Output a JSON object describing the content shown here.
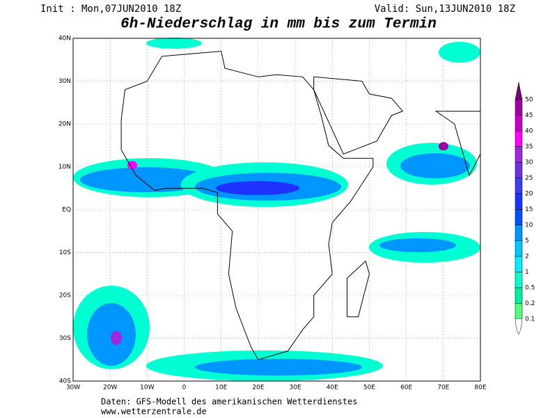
{
  "header": {
    "init": "Init : Mon,07JUN2010 18Z",
    "valid": "Valid: Sun,13JUN2010 18Z",
    "title": "6h-Niederschlag in mm bis zum Termin"
  },
  "map": {
    "lat_labels": [
      "40N",
      "30N",
      "20N",
      "10N",
      "EQ",
      "10S",
      "20S",
      "30S",
      "40S"
    ],
    "lon_labels": [
      "30W",
      "20W",
      "10W",
      "0",
      "10E",
      "20E",
      "30E",
      "40E",
      "50E",
      "60E",
      "70E",
      "80E"
    ]
  },
  "colorbar": [
    {
      "value": 50,
      "color": "#780078"
    },
    {
      "value": 45,
      "color": "#a000a0"
    },
    {
      "value": 40,
      "color": "#c800c8"
    },
    {
      "value": 35,
      "color": "#ff00ff"
    },
    {
      "value": 30,
      "color": "#a028dc"
    },
    {
      "value": 25,
      "color": "#6e32dc"
    },
    {
      "value": 20,
      "color": "#3c3cf0"
    },
    {
      "value": 15,
      "color": "#1e32ff"
    },
    {
      "value": 10,
      "color": "#0050ff"
    },
    {
      "value": 5,
      "color": "#0096ff"
    },
    {
      "value": 2,
      "color": "#00c8ff"
    },
    {
      "value": 1,
      "color": "#00f0ff"
    },
    {
      "value": 0.5,
      "color": "#00ffd2"
    },
    {
      "value": 0.2,
      "color": "#00f0a0"
    },
    {
      "value": 0.1,
      "color": "#50ff78"
    }
  ],
  "footer": {
    "line1": "Daten: GFS-Modell des amerikanischen Wetterdienstes",
    "line2": "www.wetterzentrale.de"
  }
}
